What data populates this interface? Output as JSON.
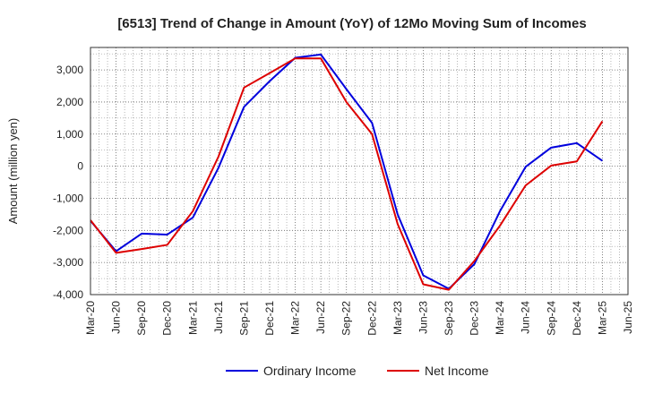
{
  "chart_data": {
    "type": "line",
    "title": "[6513]  Trend of Change in Amount (YoY) of 12Mo Moving Sum of Incomes",
    "xlabel": "",
    "ylabel": "Amount (million yen)",
    "ylim": [
      -4000,
      3700
    ],
    "yticks": [
      3000,
      2000,
      1000,
      0,
      -1000,
      -2000,
      -3000,
      -4000
    ],
    "ytick_labels": [
      "3,000",
      "2,000",
      "1,000",
      "0",
      "-1,000",
      "-2,000",
      "-3,000",
      "-4,000"
    ],
    "categories": [
      "Mar-20",
      "Jun-20",
      "Sep-20",
      "Dec-20",
      "Mar-21",
      "Jun-21",
      "Sep-21",
      "Dec-21",
      "Mar-22",
      "Jun-22",
      "Sep-22",
      "Dec-22",
      "Mar-23",
      "Jun-23",
      "Sep-23",
      "Dec-23",
      "Mar-24",
      "Jun-24",
      "Sep-24",
      "Dec-24",
      "Mar-25",
      "Jun-25"
    ],
    "grid": true,
    "legend_position": "bottom",
    "series": [
      {
        "name": "Ordinary Income",
        "color": "#0000dd",
        "values": [
          -1700,
          -2650,
          -2100,
          -2130,
          -1600,
          -50,
          1850,
          2650,
          3380,
          3480,
          2400,
          1350,
          -1500,
          -3400,
          -3820,
          -3050,
          -1400,
          -20,
          580,
          720,
          170,
          null
        ]
      },
      {
        "name": "Net Income",
        "color": "#dd0000",
        "values": [
          -1680,
          -2700,
          -2580,
          -2450,
          -1400,
          300,
          2450,
          2900,
          3360,
          3360,
          2000,
          1000,
          -1800,
          -3680,
          -3850,
          -2950,
          -1850,
          -600,
          20,
          150,
          1400,
          null
        ]
      }
    ]
  }
}
